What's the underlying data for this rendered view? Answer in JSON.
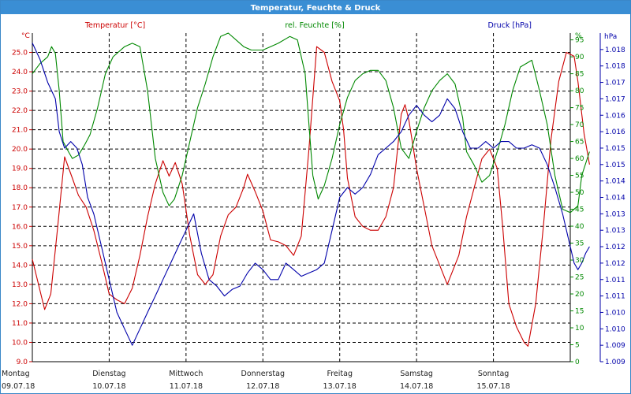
{
  "window": {
    "title": "Temperatur, Feuchte & Druck"
  },
  "colors": {
    "temperature": "#cc0000",
    "humidity": "#008800",
    "pressure": "#0000aa",
    "grid": "#000000",
    "titlebar": "#3a8ed4"
  },
  "chart_data": {
    "type": "line",
    "title": "Temperatur, Feuchte & Druck",
    "grid": true,
    "x_range": [
      0,
      7
    ],
    "x_labels": [
      {
        "day": "Montag",
        "date": "09.07.18",
        "x": 0
      },
      {
        "day": "Dienstag",
        "date": "10.07.18",
        "x": 1
      },
      {
        "day": "Mittwoch",
        "date": "11.07.18",
        "x": 2
      },
      {
        "day": "Donnerstag",
        "date": "12.07.18",
        "x": 3
      },
      {
        "day": "Freitag",
        "date": "13.07.18",
        "x": 4
      },
      {
        "day": "Samstag",
        "date": "14.07.18",
        "x": 5
      },
      {
        "day": "Sonntag",
        "date": "15.07.18",
        "x": 6
      }
    ],
    "axes": {
      "temperature": {
        "label": "Temperatur [°C]",
        "unit": "°C",
        "range": [
          9.0,
          26.0
        ],
        "ticks": [
          "25.0",
          "24.0",
          "23.0",
          "22.0",
          "21.0",
          "20.0",
          "19.0",
          "18.0",
          "17.0",
          "16.0",
          "15.0",
          "14.0",
          "13.0",
          "12.0",
          "11.0",
          "10.0",
          "9.0"
        ]
      },
      "humidity": {
        "label": "rel. Feuchte [%]",
        "unit": "%",
        "range": [
          0,
          97
        ],
        "ticks": [
          "95",
          "90",
          "85",
          "80",
          "75",
          "70",
          "65",
          "60",
          "55",
          "50",
          "45",
          "40",
          "35",
          "30",
          "25",
          "20",
          "15",
          "10",
          "5",
          "0"
        ]
      },
      "pressure": {
        "label": "Druck [hPa]",
        "unit": "hPa",
        "range": [
          1.0085,
          1.0185
        ],
        "ticks": [
          "1.018",
          "1.018",
          "1.017",
          "1.017",
          "1.016",
          "1.016",
          "1.015",
          "1.015",
          "1.014",
          "1.014",
          "1.013",
          "1.013",
          "1.012",
          "1.012",
          "1.011",
          "1.011",
          "1.010",
          "1.010",
          "1.009",
          "1.009"
        ]
      }
    },
    "series": [
      {
        "name": "Temperatur [°C]",
        "axis": "temperature",
        "points": [
          [
            0,
            14.3
          ],
          [
            0.08,
            13.0
          ],
          [
            0.16,
            11.7
          ],
          [
            0.24,
            12.5
          ],
          [
            0.33,
            16.0
          ],
          [
            0.42,
            19.6
          ],
          [
            0.52,
            18.5
          ],
          [
            0.6,
            17.6
          ],
          [
            0.7,
            17.0
          ],
          [
            0.8,
            15.8
          ],
          [
            0.9,
            14.2
          ],
          [
            1.0,
            12.5
          ],
          [
            1.1,
            12.2
          ],
          [
            1.2,
            12.0
          ],
          [
            1.3,
            12.8
          ],
          [
            1.4,
            14.5
          ],
          [
            1.5,
            16.5
          ],
          [
            1.6,
            18.2
          ],
          [
            1.7,
            19.4
          ],
          [
            1.78,
            18.6
          ],
          [
            1.86,
            19.3
          ],
          [
            1.95,
            18.2
          ],
          [
            2.05,
            15.5
          ],
          [
            2.15,
            13.5
          ],
          [
            2.25,
            13.0
          ],
          [
            2.35,
            13.5
          ],
          [
            2.45,
            15.5
          ],
          [
            2.55,
            16.6
          ],
          [
            2.65,
            17.0
          ],
          [
            2.75,
            18.0
          ],
          [
            2.8,
            18.7
          ],
          [
            2.9,
            17.8
          ],
          [
            3.0,
            16.8
          ],
          [
            3.1,
            15.3
          ],
          [
            3.2,
            15.2
          ],
          [
            3.3,
            15.0
          ],
          [
            3.4,
            14.5
          ],
          [
            3.5,
            15.5
          ],
          [
            3.6,
            20.0
          ],
          [
            3.7,
            25.3
          ],
          [
            3.8,
            25.0
          ],
          [
            3.9,
            23.5
          ],
          [
            4.0,
            22.5
          ],
          [
            4.05,
            21.0
          ],
          [
            4.1,
            18.5
          ],
          [
            4.2,
            16.5
          ],
          [
            4.3,
            16.0
          ],
          [
            4.4,
            15.8
          ],
          [
            4.5,
            15.8
          ],
          [
            4.6,
            16.5
          ],
          [
            4.7,
            18.0
          ],
          [
            4.8,
            21.8
          ],
          [
            4.85,
            22.3
          ],
          [
            4.9,
            21.5
          ],
          [
            5.0,
            19.0
          ],
          [
            5.1,
            17.0
          ],
          [
            5.2,
            15.0
          ],
          [
            5.3,
            14.0
          ],
          [
            5.4,
            13.0
          ],
          [
            5.45,
            13.5
          ],
          [
            5.55,
            14.5
          ],
          [
            5.65,
            16.5
          ],
          [
            5.75,
            18.0
          ],
          [
            5.85,
            19.5
          ],
          [
            5.95,
            20.0
          ],
          [
            6.05,
            19.0
          ],
          [
            6.12,
            16.0
          ],
          [
            6.2,
            12.0
          ],
          [
            6.3,
            10.8
          ],
          [
            6.4,
            10.0
          ],
          [
            6.45,
            9.8
          ],
          [
            6.55,
            12.0
          ],
          [
            6.65,
            16.0
          ],
          [
            6.75,
            20.5
          ],
          [
            6.85,
            23.5
          ],
          [
            6.95,
            25.0
          ],
          [
            7.05,
            24.8
          ],
          [
            7.1,
            23.5
          ],
          [
            7.18,
            20.8
          ],
          [
            7.25,
            19.2
          ]
        ]
      },
      {
        "name": "rel. Feuchte [%]",
        "axis": "humidity",
        "points": [
          [
            0,
            85
          ],
          [
            0.1,
            88
          ],
          [
            0.2,
            90
          ],
          [
            0.25,
            93
          ],
          [
            0.3,
            91
          ],
          [
            0.35,
            80
          ],
          [
            0.4,
            65
          ],
          [
            0.47,
            62
          ],
          [
            0.52,
            60
          ],
          [
            0.6,
            61
          ],
          [
            0.68,
            64
          ],
          [
            0.75,
            67
          ],
          [
            0.85,
            75
          ],
          [
            0.95,
            85
          ],
          [
            1.05,
            90
          ],
          [
            1.2,
            93
          ],
          [
            1.3,
            94
          ],
          [
            1.4,
            93
          ],
          [
            1.5,
            80
          ],
          [
            1.6,
            60
          ],
          [
            1.7,
            50
          ],
          [
            1.78,
            46
          ],
          [
            1.85,
            48
          ],
          [
            1.95,
            55
          ],
          [
            2.05,
            65
          ],
          [
            2.15,
            75
          ],
          [
            2.25,
            82
          ],
          [
            2.35,
            90
          ],
          [
            2.45,
            96
          ],
          [
            2.55,
            97
          ],
          [
            2.65,
            95
          ],
          [
            2.75,
            93
          ],
          [
            2.85,
            92
          ],
          [
            3.0,
            92
          ],
          [
            3.1,
            93
          ],
          [
            3.2,
            94
          ],
          [
            3.35,
            96
          ],
          [
            3.45,
            95
          ],
          [
            3.55,
            85
          ],
          [
            3.6,
            70
          ],
          [
            3.65,
            55
          ],
          [
            3.72,
            48
          ],
          [
            3.8,
            52
          ],
          [
            3.9,
            60
          ],
          [
            4.0,
            70
          ],
          [
            4.1,
            78
          ],
          [
            4.2,
            83
          ],
          [
            4.3,
            85
          ],
          [
            4.4,
            86
          ],
          [
            4.5,
            86
          ],
          [
            4.6,
            83
          ],
          [
            4.7,
            75
          ],
          [
            4.8,
            63
          ],
          [
            4.9,
            60
          ],
          [
            5.0,
            68
          ],
          [
            5.1,
            75
          ],
          [
            5.2,
            80
          ],
          [
            5.3,
            83
          ],
          [
            5.4,
            85
          ],
          [
            5.5,
            82
          ],
          [
            5.6,
            72
          ],
          [
            5.65,
            62
          ],
          [
            5.75,
            58
          ],
          [
            5.85,
            53
          ],
          [
            5.95,
            55
          ],
          [
            6.05,
            62
          ],
          [
            6.15,
            70
          ],
          [
            6.25,
            80
          ],
          [
            6.35,
            87
          ],
          [
            6.5,
            89
          ],
          [
            6.6,
            80
          ],
          [
            6.7,
            70
          ],
          [
            6.8,
            55
          ],
          [
            6.9,
            45
          ],
          [
            7.0,
            44
          ],
          [
            7.1,
            46
          ],
          [
            7.15,
            55
          ],
          [
            7.25,
            62
          ]
        ]
      },
      {
        "name": "Druck [hPa]",
        "axis": "pressure",
        "points": [
          [
            0,
            1.0182
          ],
          [
            0.1,
            1.0177
          ],
          [
            0.2,
            1.017
          ],
          [
            0.3,
            1.0165
          ],
          [
            0.35,
            1.0155
          ],
          [
            0.42,
            1.015
          ],
          [
            0.5,
            1.0152
          ],
          [
            0.58,
            1.015
          ],
          [
            0.65,
            1.0145
          ],
          [
            0.72,
            1.0135
          ],
          [
            0.8,
            1.013
          ],
          [
            0.9,
            1.012
          ],
          [
            1.0,
            1.011
          ],
          [
            1.1,
            1.01
          ],
          [
            1.2,
            1.0095
          ],
          [
            1.3,
            1.009
          ],
          [
            1.4,
            1.0095
          ],
          [
            1.5,
            1.01
          ],
          [
            1.6,
            1.0105
          ],
          [
            1.7,
            1.011
          ],
          [
            1.8,
            1.0115
          ],
          [
            1.9,
            1.012
          ],
          [
            2.0,
            1.0125
          ],
          [
            2.1,
            1.013
          ],
          [
            2.2,
            1.0118
          ],
          [
            2.3,
            1.011
          ],
          [
            2.4,
            1.0108
          ],
          [
            2.5,
            1.0105
          ],
          [
            2.6,
            1.0107
          ],
          [
            2.7,
            1.0108
          ],
          [
            2.8,
            1.0112
          ],
          [
            2.9,
            1.0115
          ],
          [
            3.0,
            1.0113
          ],
          [
            3.1,
            1.011
          ],
          [
            3.2,
            1.011
          ],
          [
            3.3,
            1.0115
          ],
          [
            3.4,
            1.0113
          ],
          [
            3.5,
            1.0111
          ],
          [
            3.6,
            1.0112
          ],
          [
            3.7,
            1.0113
          ],
          [
            3.8,
            1.0115
          ],
          [
            3.9,
            1.0125
          ],
          [
            4.0,
            1.0135
          ],
          [
            4.1,
            1.0138
          ],
          [
            4.2,
            1.0136
          ],
          [
            4.3,
            1.0138
          ],
          [
            4.4,
            1.0142
          ],
          [
            4.5,
            1.0148
          ],
          [
            4.6,
            1.015
          ],
          [
            4.7,
            1.0152
          ],
          [
            4.8,
            1.0155
          ],
          [
            4.9,
            1.016
          ],
          [
            5.0,
            1.0163
          ],
          [
            5.1,
            1.016
          ],
          [
            5.2,
            1.0158
          ],
          [
            5.3,
            1.016
          ],
          [
            5.4,
            1.0165
          ],
          [
            5.5,
            1.0162
          ],
          [
            5.6,
            1.0155
          ],
          [
            5.7,
            1.015
          ],
          [
            5.8,
            1.015
          ],
          [
            5.9,
            1.0152
          ],
          [
            6.0,
            1.015
          ],
          [
            6.1,
            1.0152
          ],
          [
            6.2,
            1.0152
          ],
          [
            6.3,
            1.015
          ],
          [
            6.4,
            1.015
          ],
          [
            6.5,
            1.0151
          ],
          [
            6.6,
            1.015
          ],
          [
            6.7,
            1.0145
          ],
          [
            6.8,
            1.0138
          ],
          [
            6.9,
            1.013
          ],
          [
            7.0,
            1.012
          ],
          [
            7.05,
            1.0115
          ],
          [
            7.1,
            1.0113
          ],
          [
            7.15,
            1.0115
          ],
          [
            7.2,
            1.0118
          ],
          [
            7.25,
            1.012
          ]
        ]
      }
    ]
  }
}
